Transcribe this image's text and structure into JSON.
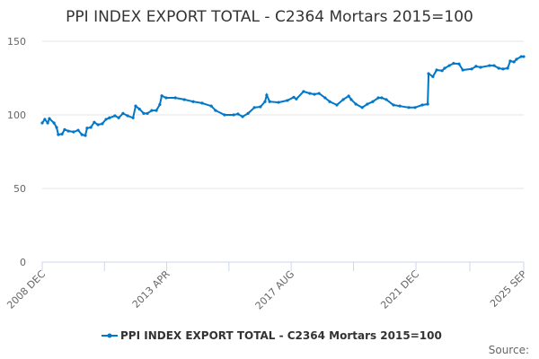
{
  "chart_data": {
    "type": "line",
    "title": "PPI INDEX EXPORT TOTAL - C2364 Mortars 2015=100",
    "xlabel": "",
    "ylabel": "",
    "ylim": [
      0,
      150
    ],
    "yticks": [
      "0",
      "50",
      "100",
      "150"
    ],
    "ytick_values": [
      0,
      50,
      100,
      150
    ],
    "xlim": [
      2008.92,
      2025.67
    ],
    "xticks": [
      "2008 DEC",
      "2013 APR",
      "2017 AUG",
      "2021 DEC",
      "2025 SEP"
    ],
    "xtick_values": [
      2008.92,
      2013.25,
      2017.58,
      2021.92,
      2025.67
    ],
    "grid": true,
    "legend_position": "bottom",
    "color": "#0077c8",
    "source_label": "Source:",
    "series": [
      {
        "name": "PPI INDEX EXPORT TOTAL - C2364 Mortars 2015=100",
        "x": [
          2008.92,
          2009.01,
          2009.11,
          2009.17,
          2009.33,
          2009.42,
          2009.48,
          2009.61,
          2009.7,
          2009.83,
          2010.01,
          2010.17,
          2010.3,
          2010.42,
          2010.48,
          2010.61,
          2010.73,
          2010.86,
          2011.01,
          2011.14,
          2011.26,
          2011.45,
          2011.58,
          2011.73,
          2011.89,
          2012.08,
          2012.17,
          2012.3,
          2012.45,
          2012.58,
          2012.73,
          2012.89,
          2013.01,
          2013.08,
          2013.23,
          2013.55,
          2013.86,
          2014.17,
          2014.48,
          2014.8,
          2014.95,
          2015.26,
          2015.58,
          2015.73,
          2015.89,
          2016.08,
          2016.3,
          2016.51,
          2016.67,
          2016.73,
          2016.83,
          2017.14,
          2017.45,
          2017.67,
          2017.76,
          2018.01,
          2018.23,
          2018.39,
          2018.55,
          2018.76,
          2018.92,
          2019.17,
          2019.39,
          2019.58,
          2019.67,
          2019.83,
          2020.05,
          2020.23,
          2020.42,
          2020.61,
          2020.73,
          2020.89,
          2021.14,
          2021.36,
          2021.67,
          2021.89,
          2022.14,
          2022.33,
          2022.36,
          2022.51,
          2022.64,
          2022.83,
          2022.92,
          2023.08,
          2023.23,
          2023.42,
          2023.55,
          2023.86,
          2024.01,
          2024.17,
          2024.48,
          2024.64,
          2024.8,
          2024.95,
          2025.11,
          2025.2,
          2025.33,
          2025.42,
          2025.58,
          2025.67
        ],
        "values": [
          94.5,
          97,
          94.5,
          97.5,
          94.5,
          91.5,
          86.6,
          87,
          90,
          89,
          88.4,
          89.6,
          86.6,
          86,
          91,
          91.5,
          95,
          93.3,
          94,
          97,
          98,
          99.4,
          98,
          101,
          99.4,
          98,
          106,
          104,
          101,
          101,
          103,
          103,
          107,
          113,
          111.6,
          111.6,
          110.4,
          109,
          108,
          106,
          103,
          100,
          100,
          100.6,
          98.8,
          101,
          105,
          105.5,
          109,
          113.4,
          109,
          108.5,
          109.8,
          112,
          110.8,
          115.9,
          114.6,
          114,
          114.6,
          111.6,
          109,
          106.7,
          110.4,
          112.8,
          110.4,
          107.3,
          105,
          107.3,
          109,
          111.6,
          111.6,
          110.4,
          106.7,
          106,
          105,
          105,
          106.7,
          107.3,
          128,
          126,
          130.5,
          130,
          131.7,
          133.5,
          135,
          134.6,
          130.5,
          131.2,
          133,
          132.3,
          133.5,
          133.5,
          131.7,
          131.2,
          131.7,
          136.6,
          136,
          137.8,
          139.6,
          139.6
        ]
      }
    ]
  }
}
